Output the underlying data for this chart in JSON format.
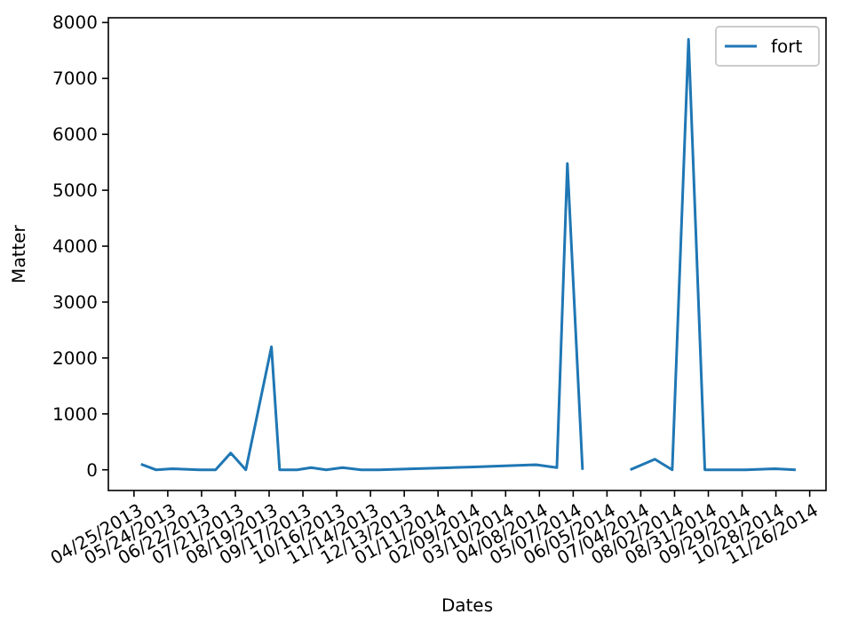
{
  "chart_data": {
    "type": "line",
    "xlabel": "Dates",
    "ylabel": "Matter",
    "x": [
      "2013-05-01",
      "2013-05-14",
      "2013-05-28",
      "2013-06-20",
      "2013-07-04",
      "2013-07-17",
      "2013-07-30",
      "2013-08-21",
      "2013-08-28",
      "2013-09-12",
      "2013-09-24",
      "2013-10-07",
      "2013-10-21",
      "2013-11-06",
      "2013-11-21",
      "2013-12-22",
      "2014-02-11",
      "2014-04-05",
      "2014-04-23",
      "2014-05-02",
      "2014-05-15",
      "2014-05-30",
      "2014-06-25",
      "2014-07-16",
      "2014-07-31",
      "2014-08-14",
      "2014-08-28",
      "2014-10-02",
      "2014-10-27",
      "2014-11-14"
    ],
    "series": [
      {
        "name": "fort",
        "color": "#1f77b4",
        "values": [
          100,
          0,
          20,
          0,
          0,
          300,
          0,
          2200,
          0,
          0,
          40,
          0,
          40,
          0,
          0,
          20,
          50,
          90,
          40,
          5480,
          0,
          null,
          0,
          190,
          0,
          7700,
          0,
          0,
          20,
          0
        ]
      }
    ],
    "xlim": [
      "2013-04-03",
      "2014-12-10"
    ],
    "xticks": [
      {
        "value": "2013-04-25",
        "label": "04/25/2013"
      },
      {
        "value": "2013-05-24",
        "label": "05/24/2013"
      },
      {
        "value": "2013-06-22",
        "label": "06/22/2013"
      },
      {
        "value": "2013-07-21",
        "label": "07/21/2013"
      },
      {
        "value": "2013-08-19",
        "label": "08/19/2013"
      },
      {
        "value": "2013-09-17",
        "label": "09/17/2013"
      },
      {
        "value": "2013-10-16",
        "label": "10/16/2013"
      },
      {
        "value": "2013-11-14",
        "label": "11/14/2013"
      },
      {
        "value": "2013-12-13",
        "label": "12/13/2013"
      },
      {
        "value": "2014-01-11",
        "label": "01/11/2014"
      },
      {
        "value": "2014-02-09",
        "label": "02/09/2014"
      },
      {
        "value": "2014-03-10",
        "label": "03/10/2014"
      },
      {
        "value": "2014-04-08",
        "label": "04/08/2014"
      },
      {
        "value": "2014-05-07",
        "label": "05/07/2014"
      },
      {
        "value": "2014-06-05",
        "label": "06/05/2014"
      },
      {
        "value": "2014-07-04",
        "label": "07/04/2014"
      },
      {
        "value": "2014-08-02",
        "label": "08/02/2014"
      },
      {
        "value": "2014-08-31",
        "label": "08/31/2014"
      },
      {
        "value": "2014-09-29",
        "label": "09/29/2014"
      },
      {
        "value": "2014-10-28",
        "label": "10/28/2014"
      },
      {
        "value": "2014-11-26",
        "label": "11/26/2014"
      }
    ],
    "ylim": [
      -370,
      8085
    ],
    "yticks": [
      0,
      1000,
      2000,
      3000,
      4000,
      5000,
      6000,
      7000,
      8000
    ],
    "grid": false,
    "legend": "top right",
    "marker": "none",
    "line_style": "solid"
  }
}
